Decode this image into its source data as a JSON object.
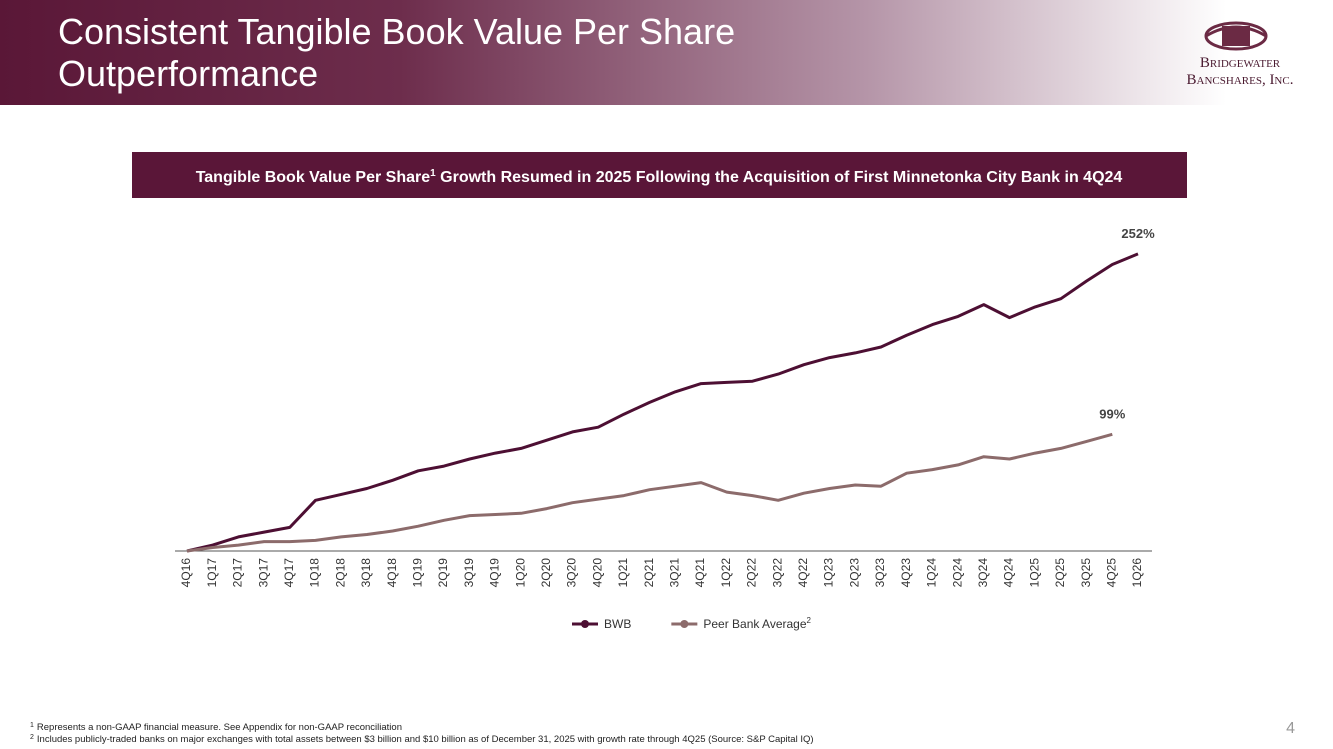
{
  "header": {
    "title_lines": [
      "Consistent Tangible Book Value Per Share",
      "Outperformance"
    ],
    "logo": {
      "line1": "Bridgewater",
      "line2": "Bancshares, Inc."
    }
  },
  "chart_data": {
    "type": "line",
    "subtitle": [
      "Tangible Book Value Per Share",
      "1",
      " Growth Resumed in 2025 Following the Acquisition of First Minnetonka City Bank in 4Q24"
    ],
    "categories": [
      "4Q16",
      "1Q17",
      "2Q17",
      "3Q17",
      "4Q17",
      "1Q18",
      "2Q18",
      "3Q18",
      "4Q18",
      "1Q19",
      "2Q19",
      "3Q19",
      "4Q19",
      "1Q20",
      "2Q20",
      "3Q20",
      "4Q20",
      "1Q21",
      "2Q21",
      "3Q21",
      "4Q21",
      "1Q22",
      "2Q22",
      "3Q22",
      "4Q22",
      "1Q23",
      "2Q23",
      "3Q23",
      "4Q23",
      "1Q24",
      "2Q24",
      "3Q24",
      "4Q24",
      "1Q25",
      "2Q25",
      "3Q25",
      "4Q25",
      "1Q26"
    ],
    "series": [
      {
        "name": "BWB",
        "color": "#4d0f33",
        "values": [
          0,
          5,
          12,
          16,
          20,
          43,
          48,
          53,
          60,
          68,
          72,
          78,
          83,
          87,
          94,
          101,
          105,
          116,
          126,
          135,
          142,
          143,
          144,
          150,
          158,
          164,
          168,
          173,
          183,
          192,
          199,
          209,
          198,
          207,
          214,
          229,
          243,
          252
        ],
        "value_labels": [
          null,
          null,
          null,
          null,
          null,
          null,
          null,
          null,
          null,
          null,
          null,
          null,
          null,
          null,
          null,
          null,
          null,
          null,
          null,
          null,
          null,
          null,
          null,
          null,
          null,
          null,
          null,
          null,
          null,
          null,
          null,
          null,
          null,
          null,
          null,
          null,
          null,
          "252%"
        ]
      },
      {
        "name": "Peer Bank Average",
        "name_note": "2",
        "color": "#8c6b6b",
        "values": [
          0,
          3,
          5,
          8,
          8,
          9,
          12,
          14,
          17,
          21,
          26,
          30,
          31,
          32,
          36,
          41,
          44,
          47,
          52,
          55,
          58,
          50,
          47,
          43,
          49,
          53,
          56,
          55,
          66,
          69,
          73,
          80,
          78,
          83,
          87,
          93,
          99,
          null
        ],
        "value_labels": [
          null,
          null,
          null,
          null,
          null,
          null,
          null,
          null,
          null,
          null,
          null,
          null,
          null,
          null,
          null,
          null,
          null,
          null,
          null,
          null,
          null,
          null,
          null,
          null,
          null,
          null,
          null,
          null,
          null,
          null,
          null,
          null,
          null,
          null,
          null,
          null,
          "99%",
          null
        ]
      }
    ],
    "ylim": [
      0,
      260
    ],
    "grid": false,
    "legend": "bottom"
  },
  "footnotes": [
    [
      "1",
      "Represents a non-GAAP financial measure. See Appendix for non-GAAP reconciliation"
    ],
    [
      "2",
      "Includes publicly-traded banks on major exchanges with total assets between $3 billion and $10 billion as of December 31, 2025 with growth rate through 4Q25 (Source: S&P Capital IQ)"
    ]
  ],
  "page_number": "4"
}
